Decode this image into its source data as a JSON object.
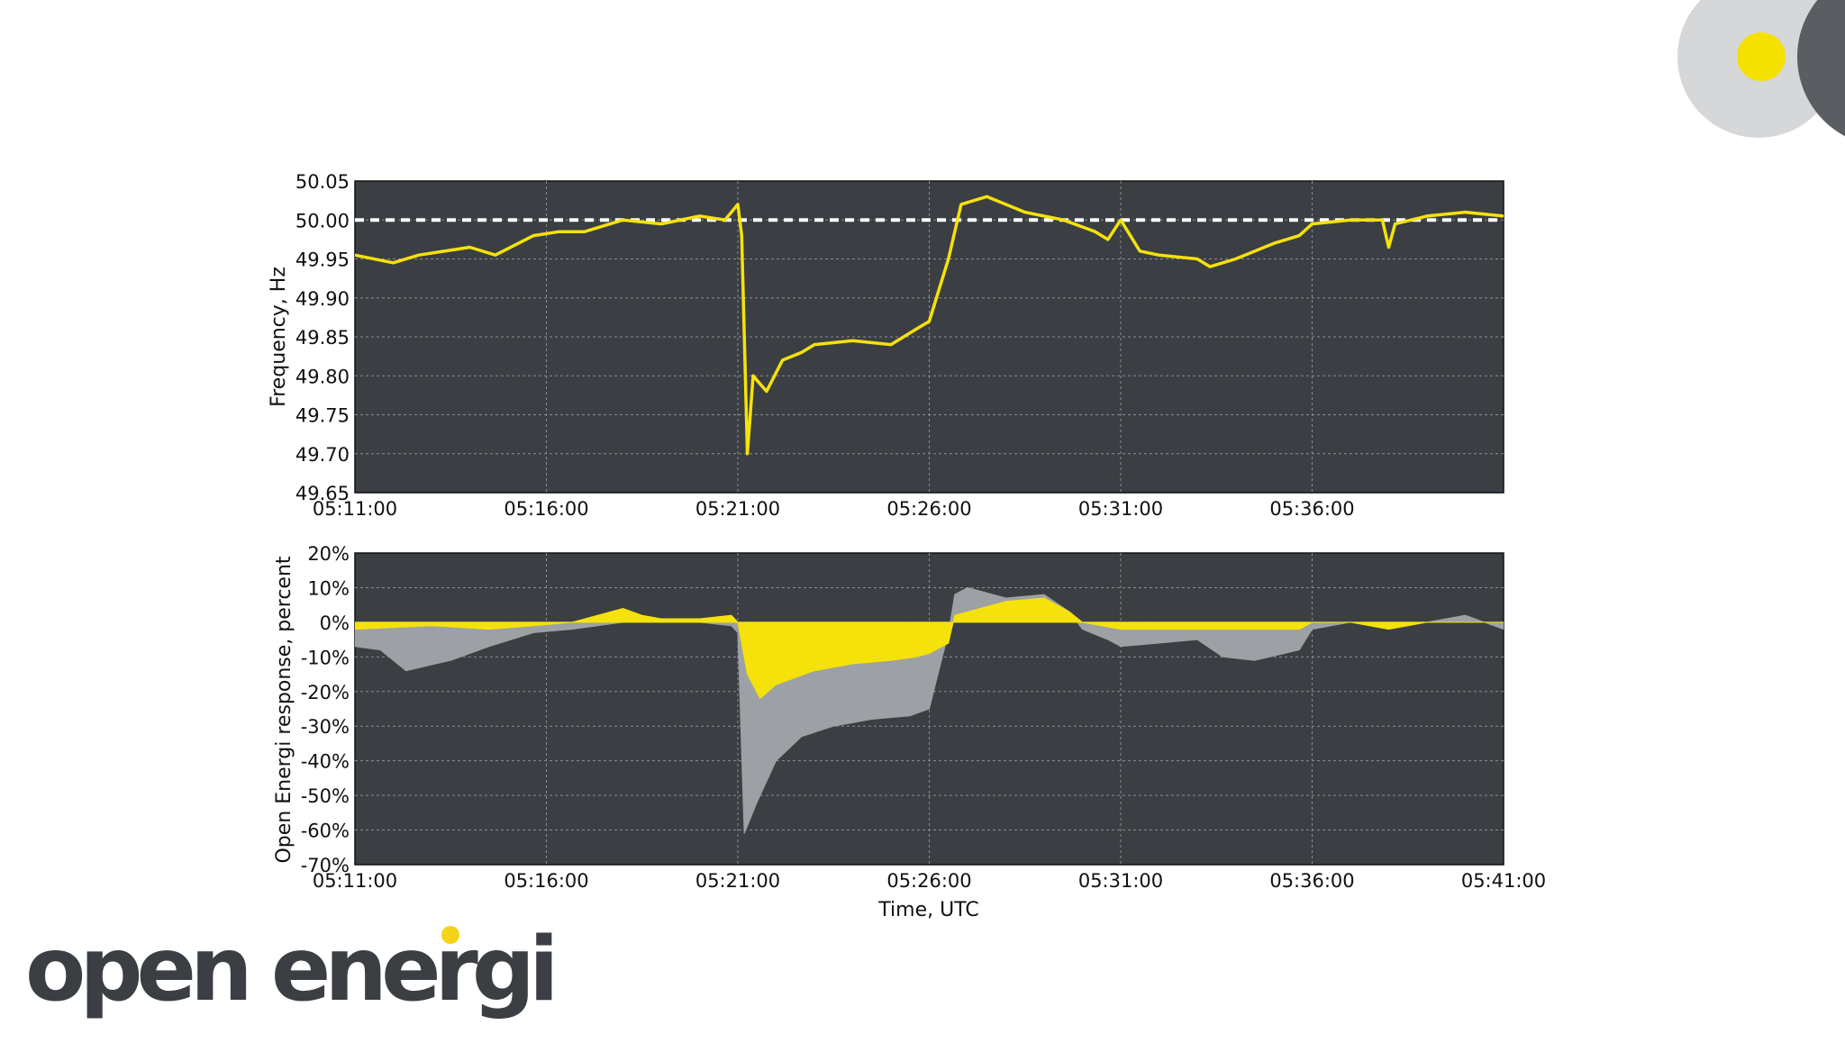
{
  "branding": {
    "logo_text": "open energi",
    "logo_color": "#3b3e42",
    "logo_dot_color": "#f5d31a"
  },
  "colors": {
    "plot_bg": "#3b3e42",
    "yellow": "#f4e20a",
    "grey_fill": "#9da0a4",
    "grid": "#8a8d91",
    "deco_light": "#d6d7d8",
    "deco_dark": "#5a5d62"
  },
  "chart_data": [
    {
      "type": "line",
      "ylabel": "Frequency, Hz",
      "xlabel": "",
      "ylim": [
        49.65,
        50.05
      ],
      "xlim": [
        "05:11:00",
        "05:41:00"
      ],
      "x_ticks": [
        "05:11:00",
        "05:16:00",
        "05:21:00",
        "05:26:00",
        "05:31:00",
        "05:36:00"
      ],
      "y_ticks": [
        "50.05",
        "50.00",
        "49.95",
        "49.90",
        "49.85",
        "49.80",
        "49.75",
        "49.70",
        "49.65"
      ],
      "grid": true,
      "reference_line": 50.0,
      "series": [
        {
          "color": "#f4e20a",
          "x": [
            "05:11:00",
            "05:12:00",
            "05:12:40",
            "05:14:00",
            "05:14:40",
            "05:15:40",
            "05:16:20",
            "05:17:00",
            "05:18:00",
            "05:19:00",
            "05:20:00",
            "05:20:40",
            "05:21:00",
            "05:21:06",
            "05:21:15",
            "05:21:24",
            "05:21:45",
            "05:22:10",
            "05:22:40",
            "05:23:00",
            "05:24:00",
            "05:25:00",
            "05:25:40",
            "05:26:00",
            "05:26:30",
            "05:26:50",
            "05:27:30",
            "05:28:30",
            "05:29:30",
            "05:30:20",
            "05:30:40",
            "05:31:00",
            "05:31:30",
            "05:32:00",
            "05:33:00",
            "05:33:20",
            "05:34:00",
            "05:35:00",
            "05:35:40",
            "05:36:00",
            "05:37:00",
            "05:37:50",
            "05:38:00",
            "05:38:10",
            "05:39:00",
            "05:40:00",
            "05:41:00"
          ],
          "y": [
            49.955,
            49.945,
            49.955,
            49.965,
            49.955,
            49.98,
            49.985,
            49.985,
            50.0,
            49.995,
            50.005,
            50.0,
            50.02,
            49.98,
            49.7,
            49.8,
            49.78,
            49.82,
            49.83,
            49.84,
            49.845,
            49.84,
            49.86,
            49.87,
            49.95,
            50.02,
            50.03,
            50.01,
            50.0,
            49.985,
            49.975,
            50.0,
            49.96,
            49.955,
            49.95,
            49.94,
            49.95,
            49.97,
            49.98,
            49.995,
            50.0,
            50.0,
            49.965,
            49.995,
            50.005,
            50.01,
            50.005
          ]
        }
      ]
    },
    {
      "type": "area",
      "ylabel": "Open Energi response, percent",
      "xlabel": "Time, UTC",
      "ylim": [
        -70,
        20
      ],
      "xlim": [
        "05:11:00",
        "05:41:00"
      ],
      "x_ticks": [
        "05:11:00",
        "05:16:00",
        "05:21:00",
        "05:26:00",
        "05:31:00",
        "05:36:00",
        "05:41:00"
      ],
      "y_ticks": [
        "20%",
        "10%",
        "0%",
        "-10%",
        "-20%",
        "-30%",
        "-40%",
        "-50%",
        "-60%",
        "-70%"
      ],
      "grid": true,
      "series": [
        {
          "color": "#9da0a4",
          "x": [
            "05:11:00",
            "05:11:40",
            "05:12:20",
            "05:13:30",
            "05:14:30",
            "05:15:40",
            "05:16:40",
            "05:18:00",
            "05:19:00",
            "05:20:00",
            "05:20:50",
            "05:21:00",
            "05:21:10",
            "05:21:30",
            "05:22:00",
            "05:22:40",
            "05:23:30",
            "05:24:30",
            "05:25:30",
            "05:26:00",
            "05:26:30",
            "05:26:40",
            "05:27:00",
            "05:28:00",
            "05:29:00",
            "05:29:40",
            "05:30:00",
            "05:30:40",
            "05:31:00",
            "05:32:00",
            "05:33:00",
            "05:33:40",
            "05:34:30",
            "05:35:40",
            "05:36:00",
            "05:37:00",
            "05:38:00",
            "05:39:00",
            "05:40:00",
            "05:41:00"
          ],
          "y": [
            -7,
            -8,
            -14,
            -11,
            -7,
            -3,
            -2,
            0,
            0,
            0,
            -1,
            -3,
            -61,
            -52,
            -40,
            -33,
            -30,
            -28,
            -27,
            -25,
            -3,
            8,
            10,
            7,
            8,
            3,
            -2,
            -5,
            -7,
            -6,
            -5,
            -10,
            -11,
            -8,
            -2,
            0,
            -1,
            0,
            2,
            -2
          ]
        },
        {
          "color": "#f4e20a",
          "x": [
            "05:11:00",
            "05:13:00",
            "05:14:30",
            "05:15:40",
            "05:16:40",
            "05:18:00",
            "05:18:30",
            "05:19:00",
            "05:20:00",
            "05:20:50",
            "05:21:00",
            "05:21:15",
            "05:21:35",
            "05:22:00",
            "05:23:00",
            "05:24:00",
            "05:25:00",
            "05:25:40",
            "05:26:00",
            "05:26:30",
            "05:26:40",
            "05:27:00",
            "05:28:00",
            "05:29:00",
            "05:29:40",
            "05:30:00",
            "05:31:00",
            "05:33:00",
            "05:35:40",
            "05:36:00",
            "05:37:00",
            "05:38:00",
            "05:39:00",
            "05:40:00",
            "05:41:00"
          ],
          "y": [
            -2,
            -1,
            -2,
            -1,
            0,
            4,
            2,
            1,
            1,
            2,
            0,
            -15,
            -22,
            -18,
            -14,
            -12,
            -11,
            -10,
            -9,
            -6,
            2,
            3,
            6,
            7,
            3,
            0,
            -2,
            -2,
            -2,
            0,
            0,
            -2,
            0,
            0,
            0
          ]
        }
      ]
    }
  ]
}
